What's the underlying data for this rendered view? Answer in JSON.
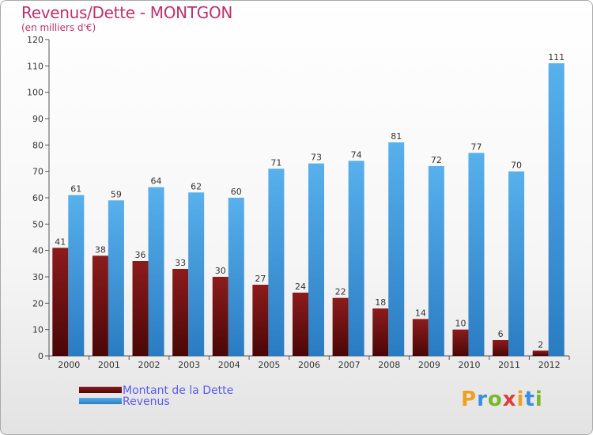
{
  "title": "Revenus/Dette - MONTGON",
  "subtitle": "(en milliers d'€)",
  "legend": [
    {
      "label": "Montant de la Dette",
      "color": "#7a1010"
    },
    {
      "label": "Revenus",
      "color": "#3a98dc"
    }
  ],
  "logo": {
    "letters": [
      "P",
      "r",
      "o",
      "x",
      "i",
      "t",
      "i"
    ],
    "colors": [
      "#f0a020",
      "#3a8ee0",
      "#7ab82a",
      "#e03a3a",
      "#f0a020",
      "#3a8ee0",
      "#7ab82a"
    ]
  },
  "chart_data": {
    "type": "bar",
    "title": "Revenus/Dette - MONTGON",
    "ylabel": "(en milliers d'€)",
    "xlabel": "",
    "categories": [
      "2000",
      "2001",
      "2002",
      "2003",
      "2004",
      "2005",
      "2006",
      "2007",
      "2008",
      "2009",
      "2010",
      "2011",
      "2012"
    ],
    "series": [
      {
        "name": "Montant de la Dette",
        "color": "#7a1010",
        "values": [
          41,
          38,
          36,
          33,
          30,
          27,
          24,
          22,
          18,
          14,
          10,
          6,
          2
        ]
      },
      {
        "name": "Revenus",
        "color": "#3a98dc",
        "values": [
          61,
          59,
          64,
          62,
          60,
          71,
          73,
          74,
          81,
          72,
          77,
          70,
          111
        ]
      }
    ],
    "ylim": [
      0,
      120
    ],
    "yticks": [
      0,
      10,
      20,
      30,
      40,
      50,
      60,
      70,
      80,
      90,
      100,
      110,
      120
    ],
    "grid": false,
    "legend_position": "bottom-left"
  }
}
